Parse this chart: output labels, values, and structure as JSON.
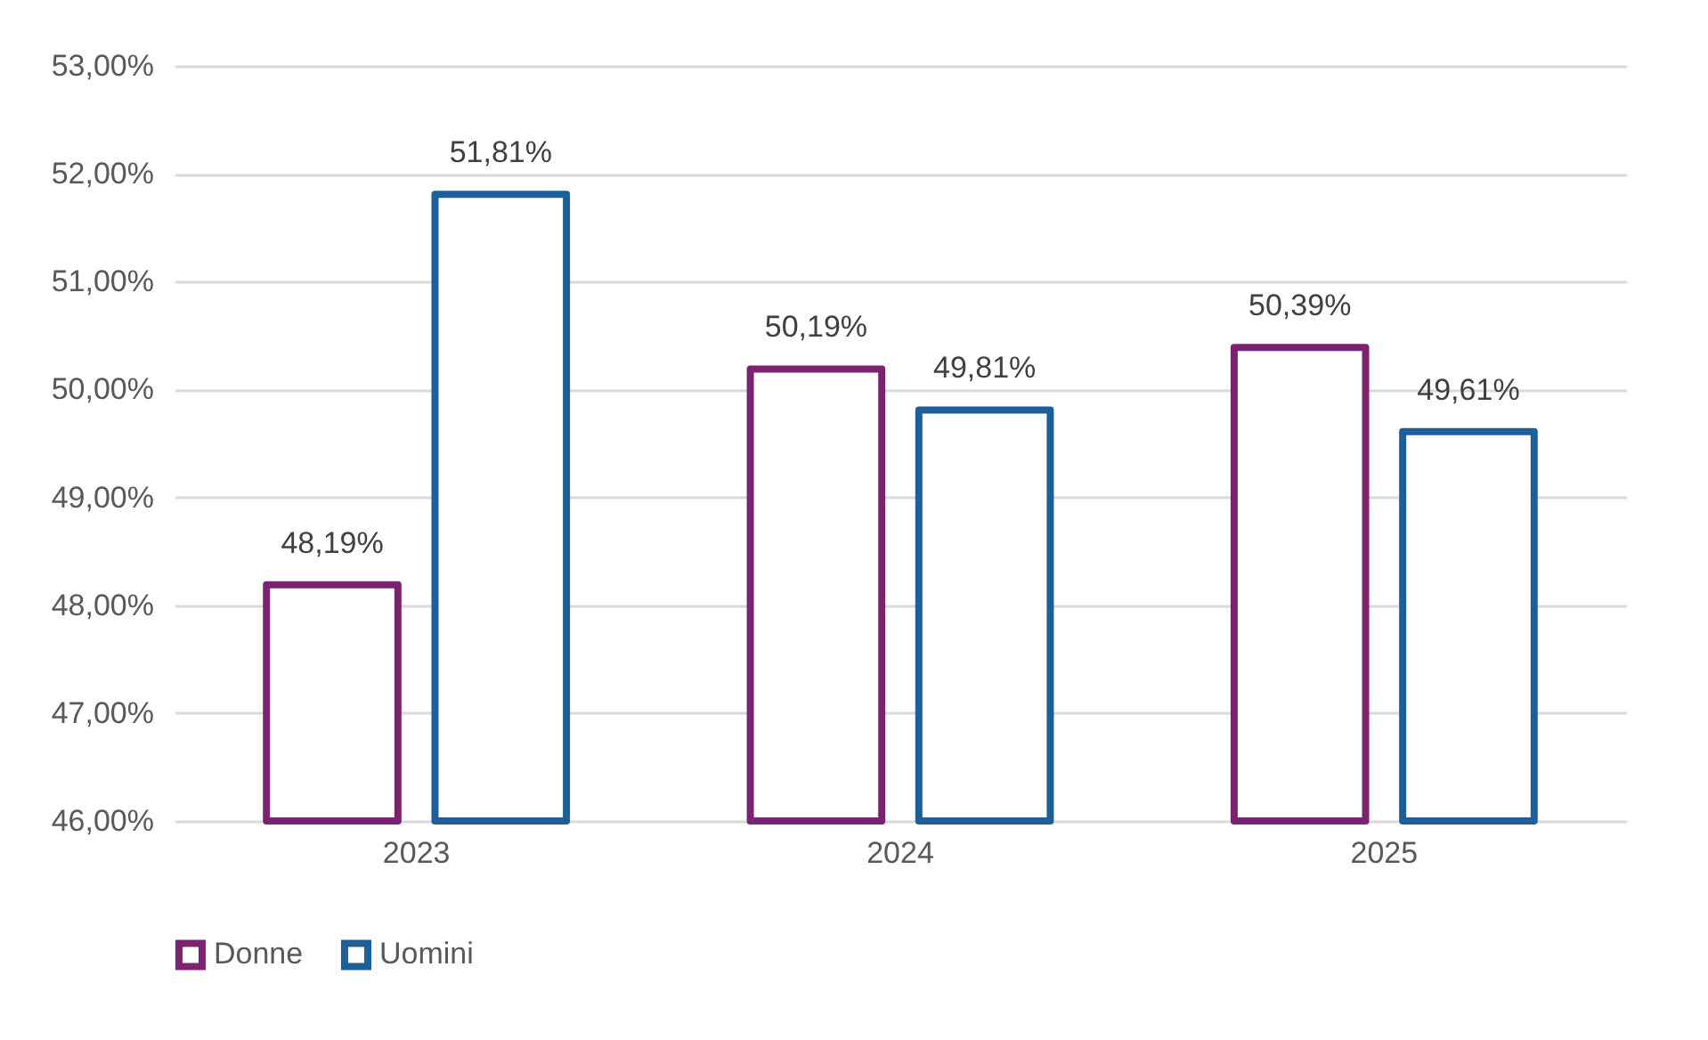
{
  "chart_data": {
    "type": "bar",
    "categories": [
      "2023",
      "2024",
      "2025"
    ],
    "series": [
      {
        "name": "Donne",
        "color": "#7b2270",
        "values": [
          48.19,
          50.19,
          50.39
        ],
        "value_labels": [
          "48,19%",
          "50,19%",
          "50,39%"
        ]
      },
      {
        "name": "Uomini",
        "color": "#1f5f99",
        "values": [
          51.81,
          49.81,
          49.61
        ],
        "value_labels": [
          "51,81%",
          "49,81%",
          "49,61%"
        ]
      }
    ],
    "ylim": [
      46,
      53
    ],
    "yticks": [
      {
        "value": 46,
        "label": "46,00%"
      },
      {
        "value": 47,
        "label": "47,00%"
      },
      {
        "value": 48,
        "label": "48,00%"
      },
      {
        "value": 49,
        "label": "49,00%"
      },
      {
        "value": 50,
        "label": "50,00%"
      },
      {
        "value": 51,
        "label": "51,00%"
      },
      {
        "value": 52,
        "label": "52,00%"
      },
      {
        "value": 53,
        "label": "53,00%"
      }
    ],
    "grid": "y",
    "legend": "bottom"
  }
}
